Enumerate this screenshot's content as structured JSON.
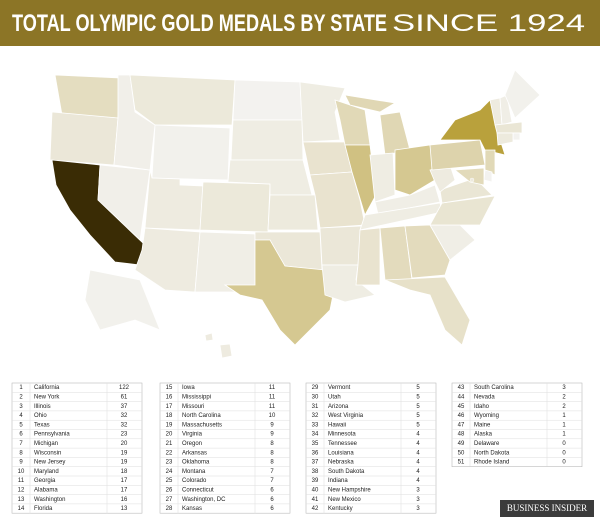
{
  "header": {
    "title": "TOTAL OLYMPIC GOLD MEDALS BY STATE",
    "subtitle": "SINCE 1924"
  },
  "map": {
    "color_scale": [
      "#f3f2ef",
      "#b9a13c",
      "#3a2c05"
    ],
    "stroke": "#ffffff",
    "background": "#ffffff"
  },
  "table": {
    "rows": [
      [
        1,
        "California",
        122
      ],
      [
        2,
        "New York",
        61
      ],
      [
        3,
        "Illinois",
        37
      ],
      [
        4,
        "Ohio",
        32
      ],
      [
        5,
        "Texas",
        32
      ],
      [
        6,
        "Pennsylvania",
        23
      ],
      [
        7,
        "Michigan",
        20
      ],
      [
        8,
        "Wisconsin",
        19
      ],
      [
        9,
        "New Jersey",
        19
      ],
      [
        10,
        "Maryland",
        18
      ],
      [
        11,
        "Georgia",
        17
      ],
      [
        12,
        "Alabama",
        17
      ],
      [
        13,
        "Washington",
        16
      ],
      [
        14,
        "Florida",
        13
      ],
      [
        15,
        "Iowa",
        11
      ],
      [
        16,
        "Mississippi",
        11
      ],
      [
        17,
        "Missouri",
        11
      ],
      [
        18,
        "North Carolina",
        10
      ],
      [
        19,
        "Massachusetts",
        9
      ],
      [
        20,
        "Virginia",
        9
      ],
      [
        21,
        "Oregon",
        8
      ],
      [
        22,
        "Arkansas",
        8
      ],
      [
        23,
        "Oklahoma",
        8
      ],
      [
        24,
        "Montana",
        7
      ],
      [
        25,
        "Colorado",
        7
      ],
      [
        26,
        "Connecticut",
        6
      ],
      [
        27,
        "Washington, DC",
        6
      ],
      [
        28,
        "Kansas",
        6
      ],
      [
        29,
        "Vermont",
        5
      ],
      [
        30,
        "Utah",
        5
      ],
      [
        31,
        "Arizona",
        5
      ],
      [
        32,
        "West Virginia",
        5
      ],
      [
        33,
        "Hawaii",
        5
      ],
      [
        34,
        "Minnesota",
        4
      ],
      [
        35,
        "Tennessee",
        4
      ],
      [
        36,
        "Louisiana",
        4
      ],
      [
        37,
        "Nebraska",
        4
      ],
      [
        38,
        "South Dakota",
        4
      ],
      [
        39,
        "Indiana",
        4
      ],
      [
        40,
        "New Hampshire",
        3
      ],
      [
        41,
        "New Mexico",
        3
      ],
      [
        42,
        "Kentucky",
        3
      ],
      [
        43,
        "South Carolina",
        3
      ],
      [
        44,
        "Nevada",
        2
      ],
      [
        45,
        "Idaho",
        2
      ],
      [
        46,
        "Wyoming",
        1
      ],
      [
        47,
        "Maine",
        1
      ],
      [
        48,
        "Alaska",
        1
      ],
      [
        49,
        "Delaware",
        0
      ],
      [
        50,
        "North Dakota",
        0
      ],
      [
        51,
        "Rhode Island",
        0
      ]
    ]
  },
  "logo": "BUSINESS INSIDER"
}
